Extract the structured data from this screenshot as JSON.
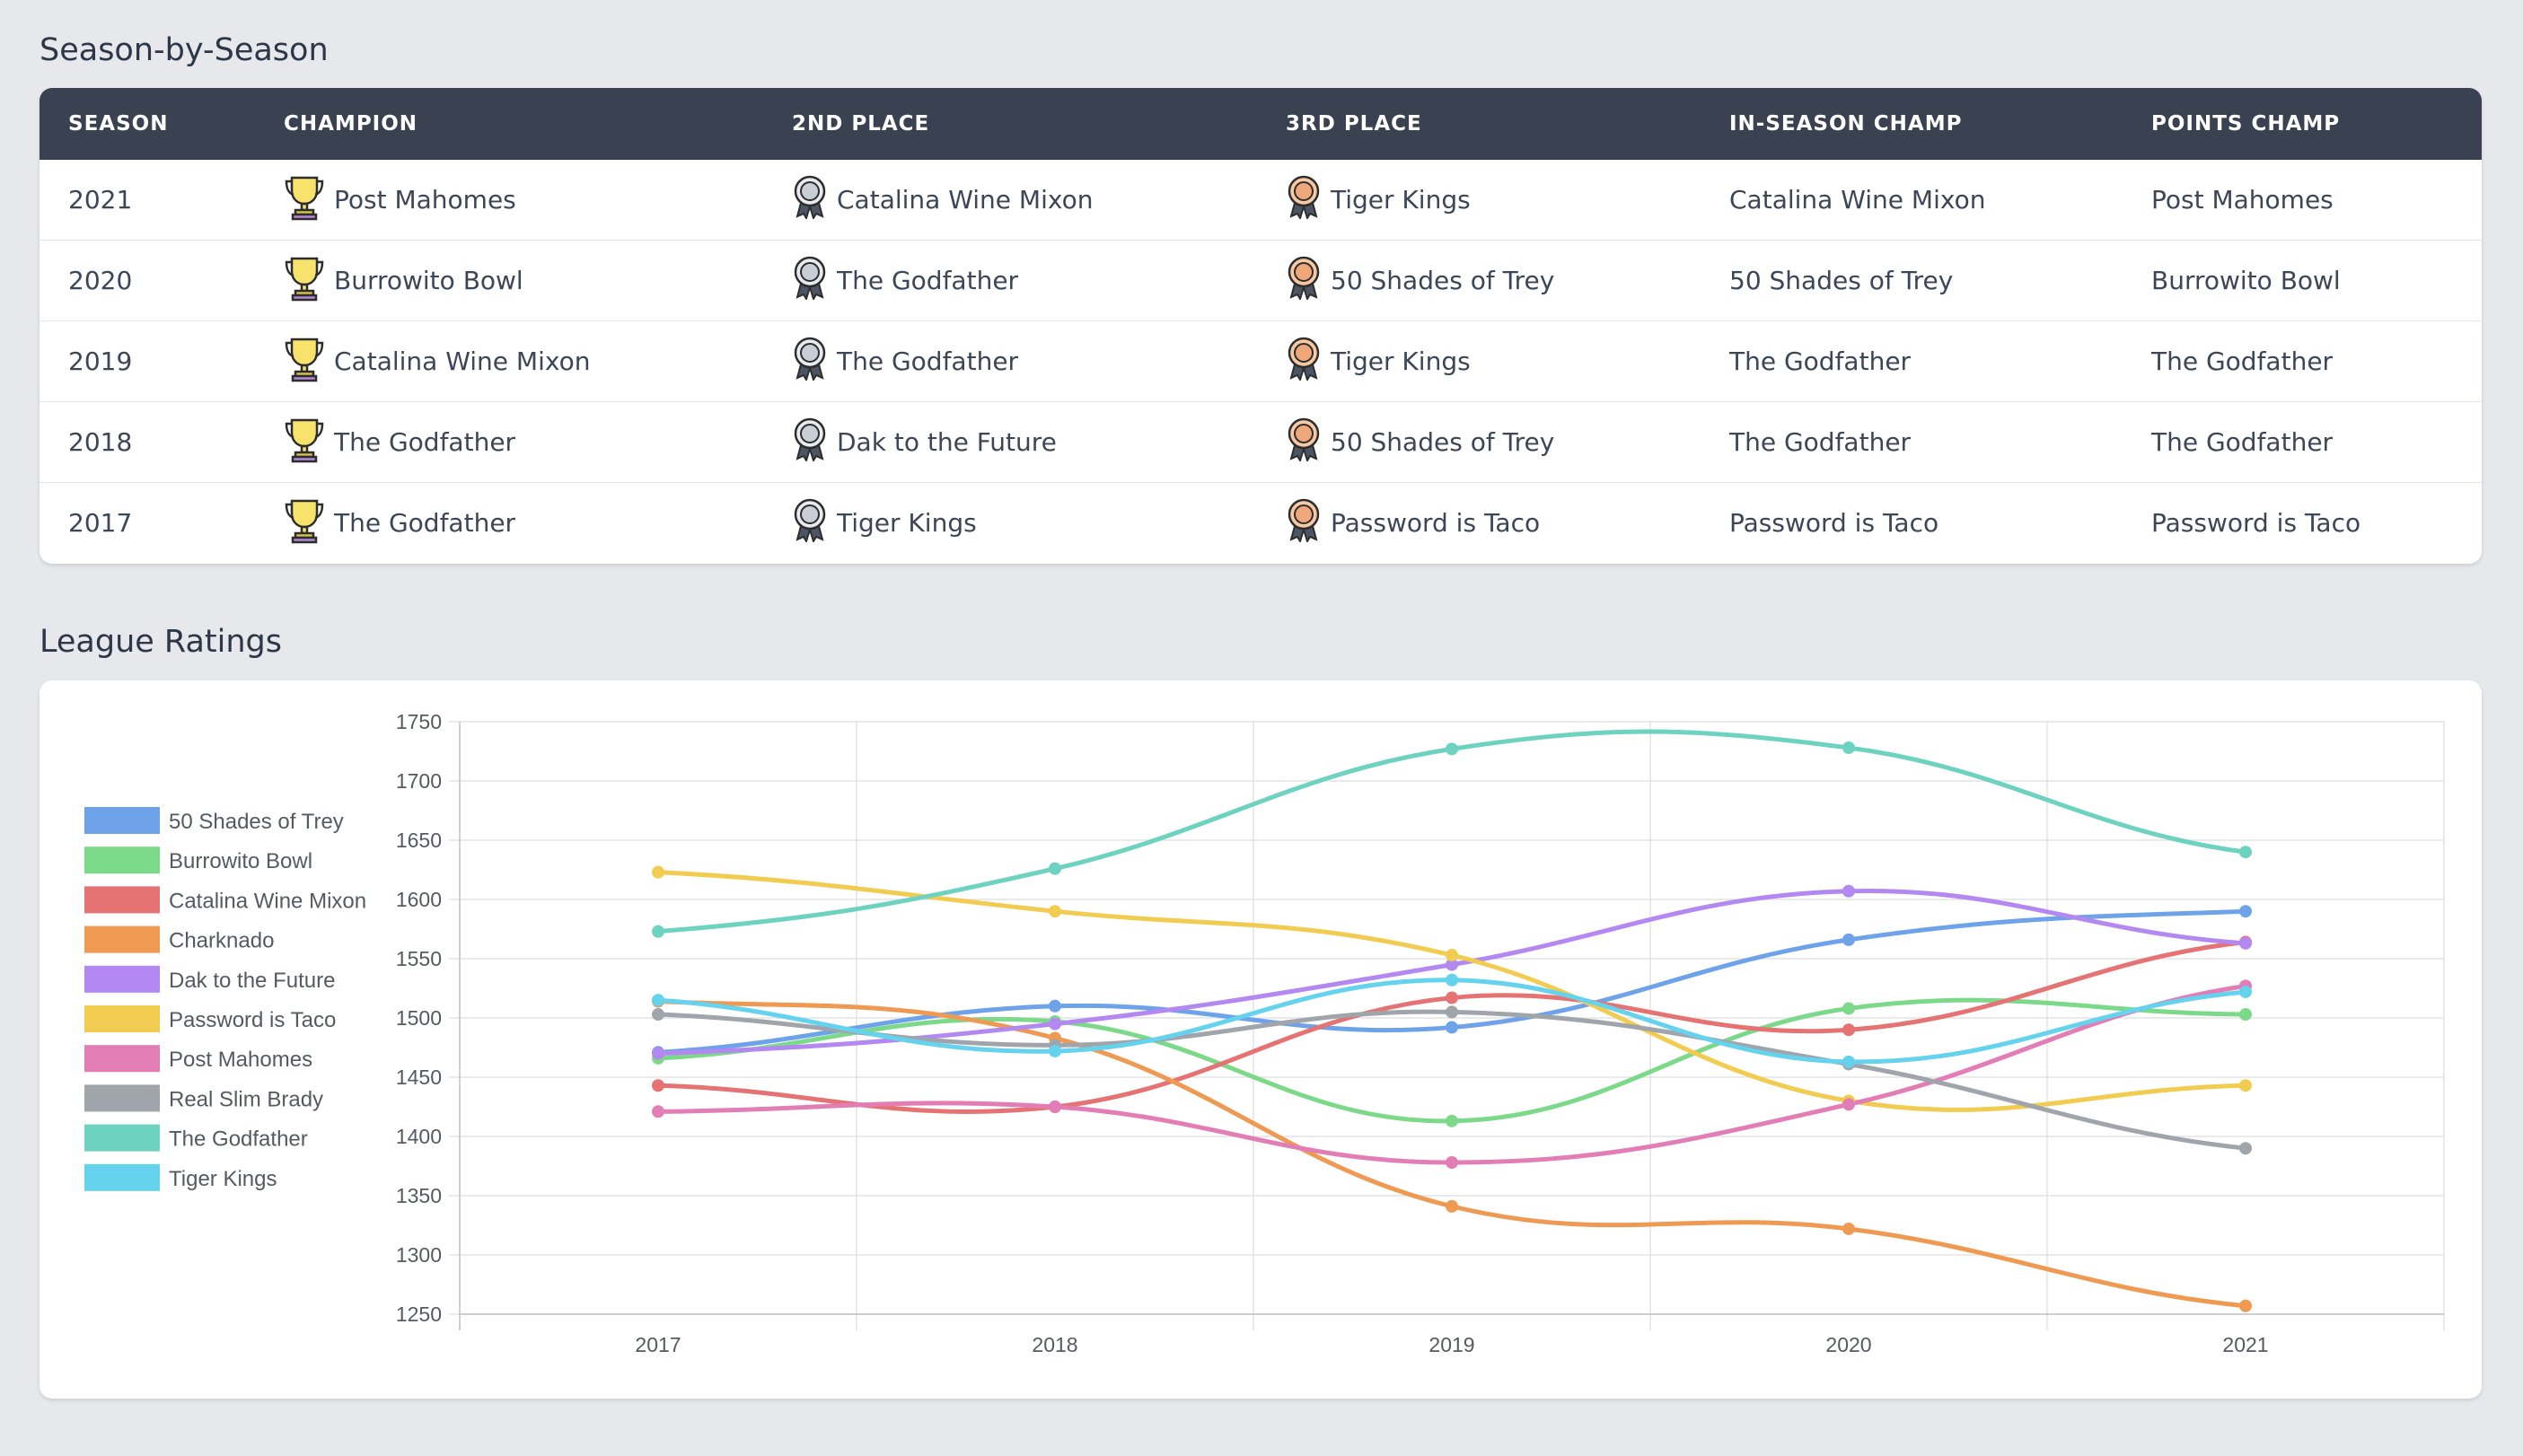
{
  "seasons_section": {
    "title": "Season-by-Season",
    "columns": [
      "SEASON",
      "CHAMPION",
      "2ND PLACE",
      "3RD PLACE",
      "IN-SEASON CHAMP",
      "POINTS CHAMP"
    ],
    "rows": [
      {
        "season": "2021",
        "champion": "Post Mahomes",
        "second": "Catalina Wine Mixon",
        "third": "Tiger Kings",
        "in_season": "Catalina Wine Mixon",
        "points": "Post Mahomes"
      },
      {
        "season": "2020",
        "champion": "Burrowito Bowl",
        "second": "The Godfather",
        "third": "50 Shades of Trey",
        "in_season": "50 Shades of Trey",
        "points": "Burrowito Bowl"
      },
      {
        "season": "2019",
        "champion": "Catalina Wine Mixon",
        "second": "The Godfather",
        "third": "Tiger Kings",
        "in_season": "The Godfather",
        "points": "The Godfather"
      },
      {
        "season": "2018",
        "champion": "The Godfather",
        "second": "Dak to the Future",
        "third": "50 Shades of Trey",
        "in_season": "The Godfather",
        "points": "The Godfather"
      },
      {
        "season": "2017",
        "champion": "The Godfather",
        "second": "Tiger Kings",
        "third": "Password is Taco",
        "in_season": "Password is Taco",
        "points": "Password is Taco"
      }
    ],
    "icons": {
      "champion": "trophy-icon",
      "second": "silver-medal-icon",
      "third": "bronze-medal-icon"
    }
  },
  "ratings_section": {
    "title": "League Ratings"
  },
  "chart_data": {
    "type": "line",
    "title": "",
    "xlabel": "",
    "ylabel": "",
    "x": [
      "2017",
      "2018",
      "2019",
      "2020",
      "2021"
    ],
    "ylim": [
      1250,
      1750
    ],
    "yticks": [
      1250,
      1300,
      1350,
      1400,
      1450,
      1500,
      1550,
      1600,
      1650,
      1700,
      1750
    ],
    "grid": true,
    "legend_position": "left",
    "series": [
      {
        "name": "50 Shades of Trey",
        "color": "#6ea3ea",
        "values": [
          1471,
          1510,
          1492,
          1566,
          1590
        ]
      },
      {
        "name": "Burrowito Bowl",
        "color": "#7dd98a",
        "values": [
          1466,
          1497,
          1413,
          1508,
          1503
        ]
      },
      {
        "name": "Catalina Wine Mixon",
        "color": "#e57373",
        "values": [
          1443,
          1425,
          1517,
          1490,
          1564
        ]
      },
      {
        "name": "Charknado",
        "color": "#ee9a52",
        "values": [
          1514,
          1483,
          1341,
          1322,
          1257
        ]
      },
      {
        "name": "Dak to the Future",
        "color": "#b388f0",
        "values": [
          1470,
          1495,
          1545,
          1607,
          1563
        ]
      },
      {
        "name": "Password is Taco",
        "color": "#f2cc50",
        "values": [
          1623,
          1590,
          1553,
          1430,
          1443
        ]
      },
      {
        "name": "Post Mahomes",
        "color": "#e27db6",
        "values": [
          1421,
          1425,
          1378,
          1427,
          1527
        ]
      },
      {
        "name": "Real Slim Brady",
        "color": "#a0a4ab",
        "values": [
          1503,
          1477,
          1505,
          1461,
          1390
        ]
      },
      {
        "name": "The Godfather",
        "color": "#6ed2c0",
        "values": [
          1573,
          1626,
          1727,
          1728,
          1640
        ]
      },
      {
        "name": "Tiger Kings",
        "color": "#65d2ee",
        "values": [
          1515,
          1472,
          1532,
          1463,
          1522
        ]
      }
    ]
  }
}
